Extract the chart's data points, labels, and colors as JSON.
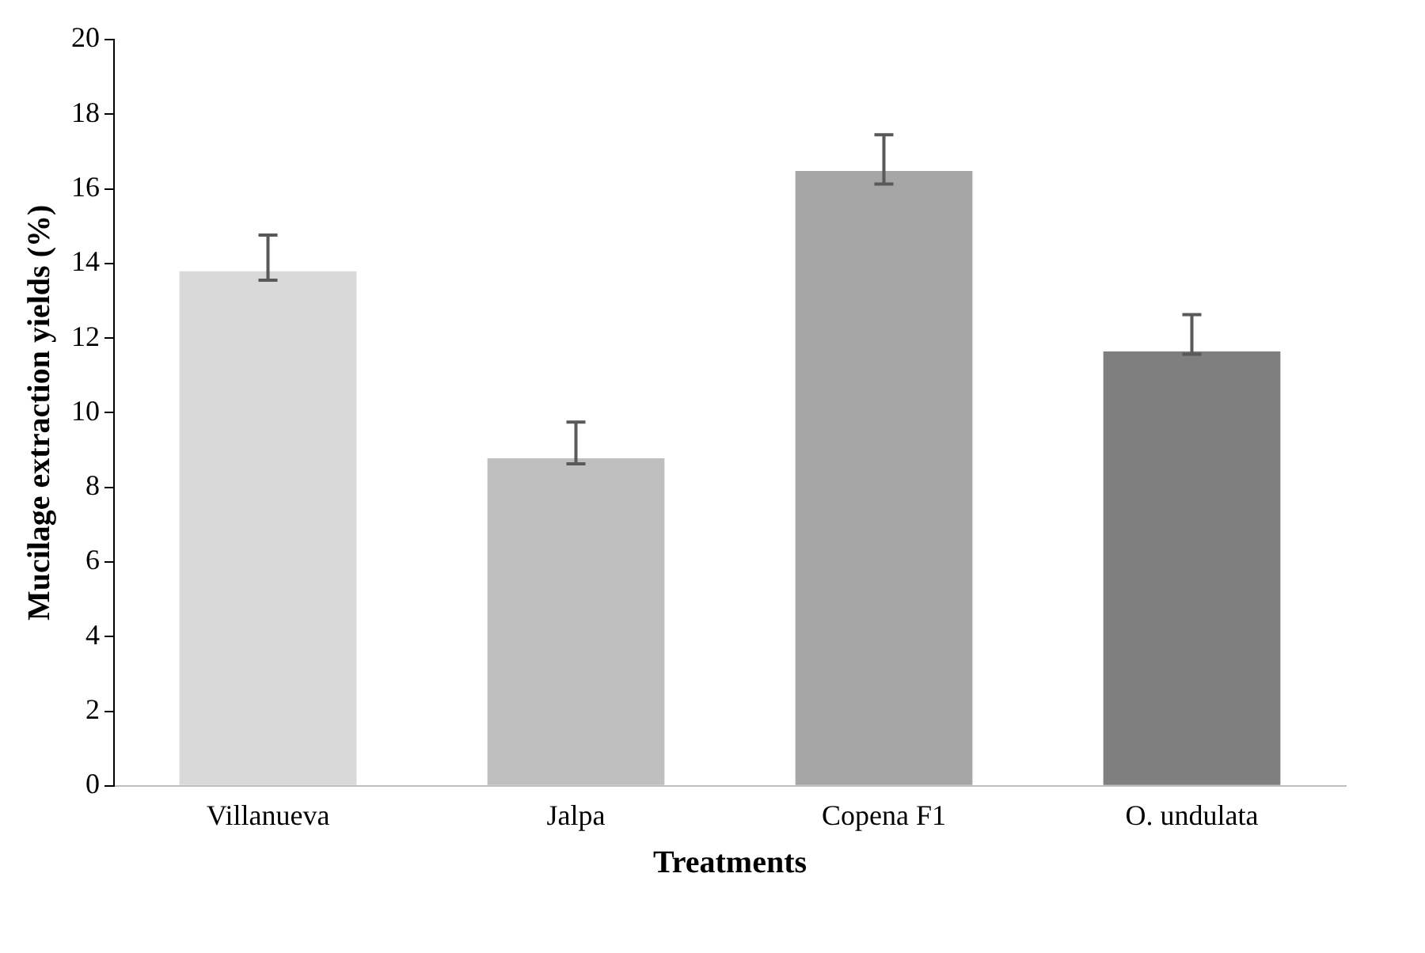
{
  "chart_data": {
    "type": "bar",
    "xlabel": "Treatments",
    "ylabel": "Mucilage extraction yields (%)",
    "categories": [
      "Villanueva",
      "Jalpa",
      "Copena F1",
      "O. undulata"
    ],
    "values": [
      13.79,
      8.78,
      16.48,
      11.64
    ],
    "colors": [
      "#d9d9d9",
      "#bfbfbf",
      "#a6a6a6",
      "#7f7f7f"
    ],
    "errors": [
      [
        13.55,
        14.76
      ],
      [
        8.63,
        9.75
      ],
      [
        16.13,
        17.45
      ],
      [
        11.57,
        12.63
      ]
    ],
    "ylim": [
      0,
      20
    ],
    "yticks": [
      0,
      2,
      4,
      6,
      8,
      10,
      12,
      14,
      16,
      18,
      20
    ],
    "grid": false,
    "legend": false
  }
}
